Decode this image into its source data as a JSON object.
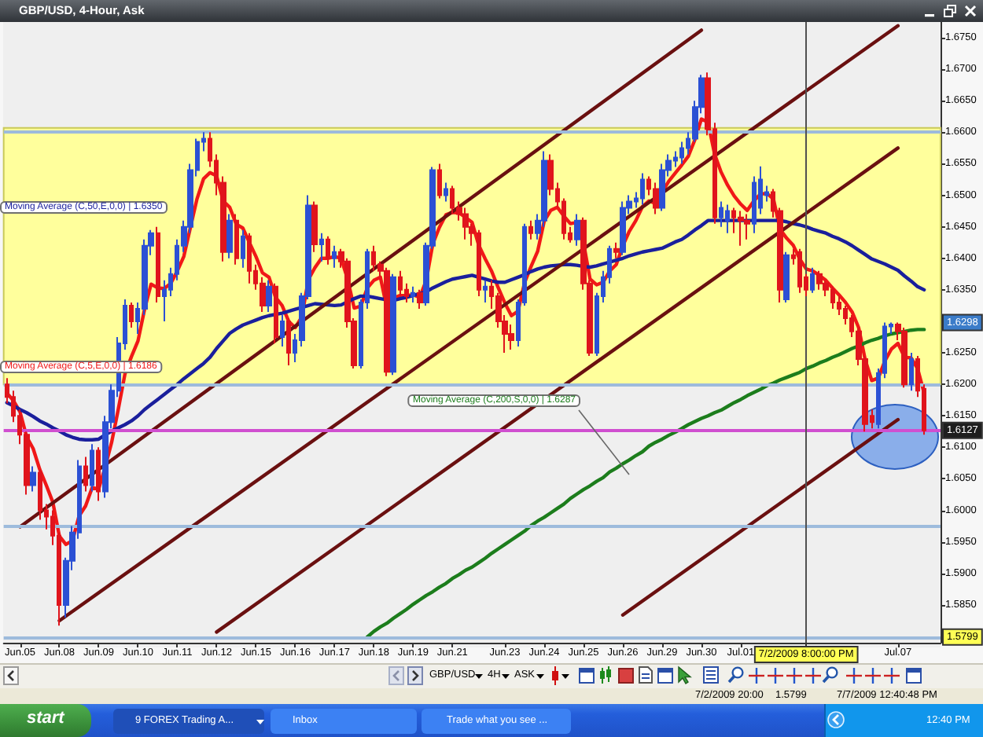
{
  "chart_data": {
    "type": "candlestick",
    "title": "GBP/USD, 4-Hour, Ask",
    "categories": [
      null,
      null,
      "Jun.05",
      null,
      null,
      null,
      null,
      null,
      "Jun.08",
      null,
      null,
      null,
      null,
      null,
      "Jun.09",
      null,
      null,
      null,
      null,
      null,
      "Jun.10",
      null,
      null,
      null,
      null,
      null,
      "Jun.11",
      null,
      null,
      null,
      null,
      null,
      "Jun.12",
      null,
      null,
      null,
      null,
      null,
      "Jun.15",
      null,
      null,
      null,
      null,
      null,
      "Jun.16",
      null,
      null,
      null,
      null,
      null,
      "Jun.17",
      null,
      null,
      null,
      null,
      null,
      "Jun.18",
      null,
      null,
      null,
      null,
      null,
      "Jun.19",
      null,
      null,
      null,
      null,
      null,
      "Jun.21",
      null,
      null,
      null,
      null,
      null,
      null,
      null,
      "Jun.23",
      null,
      null,
      null,
      null,
      null,
      "Jun.24",
      null,
      null,
      null,
      null,
      null,
      "Jun.25",
      null,
      null,
      null,
      null,
      null,
      "Jun.26",
      null,
      null,
      null,
      null,
      null,
      "Jun.29",
      null,
      null,
      null,
      null,
      null,
      "Jun.30",
      null,
      null,
      null,
      null,
      null,
      "Jul.01",
      null,
      null,
      null,
      null,
      null,
      null,
      null,
      null,
      null,
      "7/2/2009 8:00:00 PM",
      null,
      null,
      null,
      null,
      null,
      null,
      null,
      null,
      null,
      null,
      null,
      null,
      null,
      "Jul.07",
      null,
      null,
      null,
      null,
      null,
      null
    ],
    "series": [
      {
        "type": "candlestick",
        "ohlc": [
          [
            1.62,
            1.621,
            1.617,
            1.618
          ],
          [
            1.618,
            1.619,
            1.614,
            1.615
          ],
          [
            1.615,
            1.616,
            1.6105,
            1.612
          ],
          [
            1.612,
            1.6125,
            1.6025,
            1.604
          ],
          [
            1.604,
            1.607,
            1.603,
            1.606
          ],
          [
            1.606,
            1.6065,
            1.5985,
            1.6
          ],
          [
            1.6,
            1.601,
            1.597,
            1.599
          ],
          [
            1.599,
            1.6,
            1.5945,
            1.596
          ],
          [
            1.596,
            1.5965,
            1.5817,
            1.585
          ],
          [
            1.585,
            1.5925,
            1.583,
            1.592
          ],
          [
            1.592,
            1.5975,
            1.5905,
            1.5965
          ],
          [
            1.5965,
            1.608,
            1.5955,
            1.607
          ],
          [
            1.607,
            1.6085,
            1.603,
            1.604
          ],
          [
            1.604,
            1.6105,
            1.603,
            1.6095
          ],
          [
            1.6095,
            1.61,
            1.6015,
            1.603
          ],
          [
            1.603,
            1.615,
            1.602,
            1.614
          ],
          [
            1.614,
            1.62,
            1.613,
            1.619
          ],
          [
            1.619,
            1.6275,
            1.618,
            1.6265
          ],
          [
            1.6265,
            1.6335,
            1.6255,
            1.6325
          ],
          [
            1.6325,
            1.633,
            1.629,
            1.63
          ],
          [
            1.63,
            1.633,
            1.628,
            1.632
          ],
          [
            1.632,
            1.643,
            1.631,
            1.642
          ],
          [
            1.642,
            1.6445,
            1.6405,
            1.644
          ],
          [
            1.644,
            1.645,
            1.633,
            1.634
          ],
          [
            1.634,
            1.6365,
            1.63,
            1.635
          ],
          [
            1.635,
            1.6385,
            1.634,
            1.6375
          ],
          [
            1.6375,
            1.643,
            1.6365,
            1.642
          ],
          [
            1.642,
            1.646,
            1.641,
            1.645
          ],
          [
            1.645,
            1.655,
            1.644,
            1.654
          ],
          [
            1.654,
            1.659,
            1.653,
            1.6585
          ],
          [
            1.6585,
            1.66,
            1.657,
            1.659
          ],
          [
            1.659,
            1.66,
            1.6545,
            1.6555
          ],
          [
            1.6555,
            1.6565,
            1.65,
            1.652
          ],
          [
            1.652,
            1.653,
            1.6395,
            1.641
          ],
          [
            1.641,
            1.647,
            1.64,
            1.646
          ],
          [
            1.646,
            1.647,
            1.639,
            1.64
          ],
          [
            1.64,
            1.6445,
            1.6385,
            1.6435
          ],
          [
            1.6435,
            1.644,
            1.636,
            1.638
          ],
          [
            1.638,
            1.639,
            1.635,
            1.636
          ],
          [
            1.636,
            1.637,
            1.6315,
            1.6325
          ],
          [
            1.6325,
            1.6365,
            1.6315,
            1.6355
          ],
          [
            1.6355,
            1.636,
            1.6265,
            1.6275
          ],
          [
            1.6275,
            1.631,
            1.626,
            1.63
          ],
          [
            1.63,
            1.6305,
            1.623,
            1.625
          ],
          [
            1.625,
            1.628,
            1.6235,
            1.627
          ],
          [
            1.627,
            1.6345,
            1.626,
            1.634
          ],
          [
            1.634,
            1.65,
            1.6335,
            1.6484
          ],
          [
            1.6484,
            1.649,
            1.641,
            1.6422
          ],
          [
            1.6422,
            1.644,
            1.6395,
            1.643
          ],
          [
            1.643,
            1.6435,
            1.639,
            1.64
          ],
          [
            1.64,
            1.642,
            1.6385,
            1.641
          ],
          [
            1.641,
            1.6415,
            1.6385,
            1.6395
          ],
          [
            1.6395,
            1.64,
            1.629,
            1.63
          ],
          [
            1.63,
            1.6305,
            1.6225,
            1.623
          ],
          [
            1.623,
            1.6335,
            1.6225,
            1.633
          ],
          [
            1.633,
            1.6415,
            1.632,
            1.641
          ],
          [
            1.641,
            1.642,
            1.638,
            1.639
          ],
          [
            1.639,
            1.6395,
            1.637,
            1.638
          ],
          [
            1.638,
            1.6385,
            1.6213,
            1.622
          ],
          [
            1.622,
            1.6375,
            1.6215,
            1.637
          ],
          [
            1.637,
            1.638,
            1.634,
            1.635
          ],
          [
            1.635,
            1.636,
            1.633,
            1.634
          ],
          [
            1.634,
            1.6355,
            1.633,
            1.6345
          ],
          [
            1.6345,
            1.635,
            1.632,
            1.633
          ],
          [
            1.633,
            1.6425,
            1.6325,
            1.642
          ],
          [
            1.642,
            1.6545,
            1.6415,
            1.654
          ],
          [
            1.654,
            1.655,
            1.6495,
            1.65
          ],
          [
            1.65,
            1.652,
            1.649,
            1.651
          ],
          [
            1.651,
            1.6515,
            1.647,
            1.648
          ],
          [
            1.648,
            1.649,
            1.646,
            1.647
          ],
          [
            1.647,
            1.648,
            1.643,
            1.645
          ],
          [
            1.645,
            1.6455,
            1.642,
            1.644
          ],
          [
            1.644,
            1.6445,
            1.634,
            1.635
          ],
          [
            1.635,
            1.6365,
            1.633,
            1.6355
          ],
          [
            1.6355,
            1.6365,
            1.632,
            1.634
          ],
          [
            1.634,
            1.6345,
            1.629,
            1.63
          ],
          [
            1.63,
            1.631,
            1.625,
            1.628
          ],
          [
            1.628,
            1.6295,
            1.6255,
            1.627
          ],
          [
            1.627,
            1.6335,
            1.626,
            1.633
          ],
          [
            1.633,
            1.6455,
            1.6325,
            1.645
          ],
          [
            1.645,
            1.646,
            1.643,
            1.644
          ],
          [
            1.644,
            1.647,
            1.643,
            1.646
          ],
          [
            1.646,
            1.657,
            1.645,
            1.6555
          ],
          [
            1.6555,
            1.6565,
            1.65,
            1.651
          ],
          [
            1.651,
            1.652,
            1.648,
            1.649
          ],
          [
            1.649,
            1.6495,
            1.643,
            1.644
          ],
          [
            1.644,
            1.645,
            1.6425,
            1.643
          ],
          [
            1.643,
            1.647,
            1.642,
            1.646
          ],
          [
            1.646,
            1.6465,
            1.635,
            1.636
          ],
          [
            1.636,
            1.6365,
            1.6245,
            1.625
          ],
          [
            1.625,
            1.6345,
            1.6245,
            1.634
          ],
          [
            1.634,
            1.638,
            1.633,
            1.637
          ],
          [
            1.637,
            1.642,
            1.636,
            1.6415
          ],
          [
            1.6415,
            1.6425,
            1.64,
            1.641
          ],
          [
            1.641,
            1.649,
            1.6405,
            1.648
          ],
          [
            1.648,
            1.65,
            1.647,
            1.649
          ],
          [
            1.649,
            1.6505,
            1.648,
            1.6495
          ],
          [
            1.6495,
            1.6535,
            1.6485,
            1.6525
          ],
          [
            1.6525,
            1.653,
            1.65,
            1.651
          ],
          [
            1.651,
            1.652,
            1.647,
            1.648
          ],
          [
            1.648,
            1.655,
            1.6475,
            1.654
          ],
          [
            1.654,
            1.6565,
            1.653,
            1.6555
          ],
          [
            1.6555,
            1.657,
            1.6545,
            1.656
          ],
          [
            1.656,
            1.6585,
            1.655,
            1.6575
          ],
          [
            1.6575,
            1.66,
            1.6565,
            1.659
          ],
          [
            1.659,
            1.665,
            1.6585,
            1.664
          ],
          [
            1.664,
            1.6691,
            1.663,
            1.6686
          ],
          [
            1.6686,
            1.6695,
            1.6595,
            1.6605
          ],
          [
            1.6605,
            1.6615,
            1.6455,
            1.6465
          ],
          [
            1.6465,
            1.649,
            1.645,
            1.648
          ],
          [
            1.646,
            1.6485,
            1.644,
            1.6475
          ],
          [
            1.6475,
            1.648,
            1.644,
            1.6465
          ],
          [
            1.6465,
            1.6475,
            1.642,
            1.646
          ],
          [
            1.646,
            1.647,
            1.643,
            1.6455
          ],
          [
            1.6455,
            1.653,
            1.644,
            1.652
          ],
          [
            1.648,
            1.6546,
            1.647,
            1.6525
          ],
          [
            1.65,
            1.6515,
            1.649,
            1.6505
          ],
          [
            1.6505,
            1.651,
            1.6465,
            1.6475
          ],
          [
            1.6475,
            1.648,
            1.633,
            1.635
          ],
          [
            1.6335,
            1.641,
            1.633,
            1.6405
          ],
          [
            1.6405,
            1.6415,
            1.639,
            1.64
          ],
          [
            1.641,
            1.6415,
            1.6345,
            1.6355
          ],
          [
            1.637,
            1.6375,
            1.634,
            1.635
          ],
          [
            1.635,
            1.6385,
            1.6345,
            1.6375
          ],
          [
            1.6375,
            1.638,
            1.635,
            1.636
          ],
          [
            1.636,
            1.6365,
            1.634,
            1.635
          ],
          [
            1.635,
            1.6355,
            1.632,
            1.633
          ],
          [
            1.633,
            1.634,
            1.631,
            1.632
          ],
          [
            1.632,
            1.6325,
            1.6295,
            1.6305
          ],
          [
            1.6305,
            1.631,
            1.6275,
            1.6284
          ],
          [
            1.6284,
            1.629,
            1.623,
            1.624
          ],
          [
            1.624,
            1.6245,
            1.6125,
            1.6137
          ],
          [
            1.615,
            1.616,
            1.613,
            1.614
          ],
          [
            1.6137,
            1.6225,
            1.613,
            1.6218
          ],
          [
            1.6218,
            1.6298,
            1.621,
            1.6292
          ],
          [
            1.6292,
            1.6298,
            1.628,
            1.6295
          ],
          [
            1.6295,
            1.6298,
            1.627,
            1.6284
          ],
          [
            1.6284,
            1.629,
            1.6195,
            1.62
          ],
          [
            1.62,
            1.625,
            1.619,
            1.624
          ],
          [
            1.624,
            1.6245,
            1.618,
            1.619
          ],
          [
            1.6193,
            1.62,
            1.612,
            1.6127
          ],
          null,
          null
        ],
        "colors": [
          "#e0141c",
          "#e0141c",
          "#e0141c",
          "#e0141c",
          "#2b50d4",
          "#e0141c",
          "#e0141c",
          "#e0141c",
          "#e0141c",
          "#2b50d4",
          "#2b50d4",
          "#2b50d4",
          "#e0141c",
          "#2b50d4",
          "#e0141c",
          "#2b50d4",
          "#2b50d4",
          "#2b50d4",
          "#2b50d4",
          "#e0141c",
          "#2b50d4",
          "#2b50d4",
          "#2b50d4",
          "#e0141c",
          "#2b50d4",
          "#2b50d4",
          "#2b50d4",
          "#2b50d4",
          "#2b50d4",
          "#2b50d4",
          "#2b50d4",
          "#e0141c",
          "#e0141c",
          "#e0141c",
          "#2b50d4",
          "#e0141c",
          "#2b50d4",
          "#e0141c",
          "#e0141c",
          "#e0141c",
          "#2b50d4",
          "#e0141c",
          "#2b50d4",
          "#e0141c",
          "#2b50d4",
          "#2b50d4",
          "#2b50d4",
          "#e0141c",
          "#2b50d4",
          "#e0141c",
          "#2b50d4",
          "#e0141c",
          "#e0141c",
          "#e0141c",
          "#2b50d4",
          "#2b50d4",
          "#e0141c",
          "#e0141c",
          "#e0141c",
          "#2b50d4",
          "#e0141c",
          "#e0141c",
          "#2b50d4",
          "#e0141c",
          "#2b50d4",
          "#2b50d4",
          "#e0141c",
          "#2b50d4",
          "#e0141c",
          "#e0141c",
          "#e0141c",
          "#e0141c",
          "#e0141c",
          "#2b50d4",
          "#e0141c",
          "#e0141c",
          "#e0141c",
          "#e0141c",
          "#2b50d4",
          "#2b50d4",
          "#e0141c",
          "#2b50d4",
          "#2b50d4",
          "#e0141c",
          "#e0141c",
          "#e0141c",
          "#e0141c",
          "#2b50d4",
          "#e0141c",
          "#e0141c",
          "#2b50d4",
          "#2b50d4",
          "#2b50d4",
          "#e0141c",
          "#2b50d4",
          "#2b50d4",
          "#2b50d4",
          "#2b50d4",
          "#e0141c",
          "#e0141c",
          "#2b50d4",
          "#2b50d4",
          "#2b50d4",
          "#2b50d4",
          "#2b50d4",
          "#2b50d4",
          "#2b50d4",
          "#e0141c",
          "#e0141c",
          "#2b50d4",
          "#2b50d4",
          "#e0141c",
          "#e0141c",
          "#e0141c",
          "#2b50d4",
          "#2b50d4",
          "#2b50d4",
          "#e0141c",
          "#e0141c",
          "#2b50d4",
          "#e0141c",
          "#e0141c",
          "#e0141c",
          "#2b50d4",
          "#e0141c",
          "#e0141c",
          "#e0141c",
          "#e0141c",
          "#e0141c",
          "#e0141c",
          "#e0141c",
          "#e0141c",
          "#e0141c",
          "#2b50d4",
          "#2b50d4",
          "#2b50d4",
          "#e0141c",
          "#e0141c",
          "#2b50d4",
          "#e0141c",
          "#e0141c",
          null,
          null
        ]
      },
      {
        "type": "line",
        "name": "Moving Average (C,5,E,0,0) | 1.6186",
        "color": "#f01818",
        "values": [
          1.6186,
          1.6174,
          1.6156,
          1.6117,
          1.6098,
          1.6065,
          1.604,
          1.6013,
          1.5959,
          1.5946,
          1.5952,
          1.5991,
          1.6007,
          1.6036,
          1.6034,
          1.6069,
          1.6109,
          1.6161,
          1.6216,
          1.6244,
          1.6269,
          1.6319,
          1.6359,
          1.6353,
          1.6352,
          1.636,
          1.638,
          1.6403,
          1.6449,
          1.6494,
          1.6526,
          1.6536,
          1.6531,
          1.6491,
          1.6481,
          1.6454,
          1.6448,
          1.6425,
          1.6403,
          1.6377,
          1.637,
          1.6338,
          1.6325,
          1.63,
          1.629,
          1.6307,
          1.6366,
          1.6385,
          1.64,
          1.64,
          1.6403,
          1.64,
          1.6367,
          1.6321,
          1.6324,
          1.6353,
          1.6365,
          1.637,
          1.632,
          1.6337,
          1.6341,
          1.6341,
          1.6342,
          1.6338,
          1.6365,
          1.6423,
          1.6449,
          1.6469,
          1.6473,
          1.6472,
          1.6465,
          1.6457,
          1.6421,
          1.6399,
          1.6379,
          1.6353,
          1.6329,
          1.6309,
          1.6316,
          1.6361,
          1.6387,
          1.6411,
          1.6459,
          1.6476,
          1.6481,
          1.6467,
          1.6455,
          1.6457,
          1.6425,
          1.6367,
          1.6358,
          1.6362,
          1.638,
          1.639,
          1.642,
          1.6443,
          1.646,
          1.6482,
          1.6491,
          1.6487,
          1.6505,
          1.6522,
          1.6535,
          1.6548,
          1.6562,
          1.6588,
          1.6621,
          1.6616,
          1.6566,
          1.6537,
          1.6516,
          1.6499,
          1.6486,
          1.6476,
          1.6491,
          1.6502,
          1.6503,
          1.6494,
          1.6446,
          1.6432,
          1.6421,
          1.6399,
          1.6383,
          1.638,
          1.6373,
          1.6365,
          1.6353,
          1.6342,
          1.633,
          1.6315,
          1.629,
          1.6239,
          1.6206,
          1.621,
          1.6237,
          1.6256,
          1.6265,
          1.6243,
          1.6242,
          1.6225,
          1.6186,
          null,
          null
        ]
      },
      {
        "type": "line",
        "name": "Moving Average (C,50,E,0,0) | 1.6350",
        "color": "#1a1f9c",
        "values": [
          1.6171,
          1.6166,
          1.616,
          1.6155,
          1.6149,
          1.6142,
          1.6137,
          1.6131,
          1.6126,
          1.612,
          1.6116,
          1.6113,
          1.6112,
          1.6112,
          1.6113,
          1.612,
          1.6126,
          1.6131,
          1.6136,
          1.6142,
          1.615,
          1.616,
          1.6168,
          1.6176,
          1.6184,
          1.6192,
          1.62,
          1.6209,
          1.6217,
          1.6225,
          1.6233,
          1.6243,
          1.6257,
          1.6269,
          1.6281,
          1.6288,
          1.6294,
          1.6298,
          1.6302,
          1.6306,
          1.6309,
          1.6311,
          1.6313,
          1.6316,
          1.6319,
          1.6322,
          1.6325,
          1.6328,
          1.6327,
          1.6326,
          1.6325,
          1.6326,
          1.6331,
          1.6336,
          1.634,
          1.634,
          1.6338,
          1.6336,
          1.6334,
          1.6333,
          1.6336,
          1.6338,
          1.6341,
          1.6344,
          1.6347,
          1.6353,
          1.6358,
          1.6363,
          1.6367,
          1.6369,
          1.6371,
          1.6373,
          1.637,
          1.6367,
          1.6364,
          1.6362,
          1.6362,
          1.6366,
          1.637,
          1.6374,
          1.6379,
          1.6383,
          1.6386,
          1.6388,
          1.6389,
          1.639,
          1.639,
          1.6389,
          1.6387,
          1.6386,
          1.6388,
          1.6391,
          1.6394,
          1.6397,
          1.64,
          1.6404,
          1.6407,
          1.641,
          1.6412,
          1.6414,
          1.6416,
          1.6421,
          1.6426,
          1.643,
          1.6437,
          1.6445,
          1.6452,
          1.646,
          1.646,
          1.646,
          1.646,
          1.646,
          1.646,
          1.646,
          1.646,
          1.646,
          1.646,
          1.646,
          1.646,
          1.6458,
          1.6455,
          1.6453,
          1.645,
          1.6446,
          1.6443,
          1.644,
          1.6435,
          1.6431,
          1.6426,
          1.642,
          1.6413,
          1.6406,
          1.6399,
          1.6395,
          1.6391,
          1.6386,
          1.6381,
          1.6372,
          1.6364,
          1.6355,
          1.635,
          null,
          null
        ]
      },
      {
        "type": "line",
        "name": "Moving Average (C,200,S,0,0) | 1.6287",
        "color": "#1c7d1c",
        "values": [
          null,
          null,
          null,
          null,
          null,
          null,
          null,
          null,
          null,
          null,
          null,
          null,
          null,
          null,
          null,
          null,
          null,
          null,
          null,
          null,
          null,
          null,
          null,
          null,
          null,
          null,
          null,
          null,
          null,
          null,
          null,
          null,
          null,
          null,
          null,
          null,
          null,
          null,
          null,
          null,
          null,
          null,
          null,
          null,
          null,
          null,
          null,
          null,
          null,
          null,
          null,
          null,
          null,
          null,
          null,
          1.5799,
          1.5808,
          1.5815,
          1.5821,
          1.5829,
          1.5836,
          1.5843,
          1.5851,
          1.5858,
          1.5865,
          1.5871,
          1.5878,
          1.5884,
          1.5892,
          1.5898,
          1.5905,
          1.591,
          1.5917,
          1.5924,
          1.5932,
          1.5939,
          1.5946,
          1.5953,
          1.596,
          1.5967,
          1.5976,
          1.5983,
          1.5989,
          1.5996,
          1.6003,
          1.601,
          1.6019,
          1.6026,
          1.6033,
          1.6039,
          1.6046,
          1.6052,
          1.6061,
          1.6067,
          1.6074,
          1.608,
          1.6087,
          1.6093,
          1.6102,
          1.6108,
          1.6113,
          1.6119,
          1.6124,
          1.613,
          1.6136,
          1.6141,
          1.6146,
          1.615,
          1.6155,
          1.6159,
          1.6165,
          1.6171,
          1.6176,
          1.6182,
          1.6187,
          1.6192,
          1.6198,
          1.6202,
          1.6207,
          1.6211,
          1.6215,
          1.6219,
          1.6225,
          1.6229,
          1.6234,
          1.6238,
          1.6243,
          1.6247,
          1.6252,
          1.6257,
          1.6261,
          1.6266,
          1.627,
          1.6273,
          1.6277,
          1.628,
          1.6282,
          1.6284,
          1.6286,
          1.6287,
          1.6287,
          null,
          null
        ]
      },
      {
        "type": "line",
        "color": "#6a1010",
        "x": [
          "Jun.05",
          "Jun.30"
        ],
        "values": [
          1.5974,
          1.6762
        ]
      },
      {
        "type": "line",
        "color": "#6a1010",
        "x": [
          "Jun.08",
          "Jul.07"
        ],
        "values": [
          1.5825,
          1.6769
        ]
      },
      {
        "type": "line",
        "color": "#6a1010",
        "x": [
          "Jun.12",
          "Jul.07"
        ],
        "values": [
          1.5807,
          1.6575
        ]
      },
      {
        "type": "line",
        "color": "#6a1010",
        "x": [
          "Jun.26",
          "Jul.07"
        ],
        "values": [
          1.5834,
          1.6144
        ]
      }
    ],
    "ylim": [
      1.579,
      1.6775
    ],
    "yticks": [
      {
        "value": 1.585,
        "label": "1.5850"
      },
      {
        "value": 1.59,
        "label": "1.5900"
      },
      {
        "value": 1.595,
        "label": "1.5950"
      },
      {
        "value": 1.6,
        "label": "1.6000"
      },
      {
        "value": 1.605,
        "label": "1.6050"
      },
      {
        "value": 1.61,
        "label": "1.6100"
      },
      {
        "value": 1.615,
        "label": "1.6150"
      },
      {
        "value": 1.62,
        "label": "1.6200"
      },
      {
        "value": 1.625,
        "label": "1.6250"
      },
      {
        "value": 1.635,
        "label": "1.6350"
      },
      {
        "value": 1.64,
        "label": "1.6400"
      },
      {
        "value": 1.645,
        "label": "1.6450"
      },
      {
        "value": 1.65,
        "label": "1.6500"
      },
      {
        "value": 1.655,
        "label": "1.6550"
      },
      {
        "value": 1.66,
        "label": "1.6600"
      },
      {
        "value": 1.665,
        "label": "1.6650"
      },
      {
        "value": 1.67,
        "label": "1.6700"
      },
      {
        "value": 1.675,
        "label": "1.6750"
      }
    ],
    "ref_lines": [
      {
        "axis": "y",
        "value": 1.66,
        "color": "#9dbbdc"
      },
      {
        "axis": "y",
        "value": 1.62,
        "color": "#9dbbdc"
      },
      {
        "axis": "y",
        "value": 1.5975,
        "color": "#9dbbdc"
      },
      {
        "axis": "y",
        "value": 1.6127,
        "label": "1.6127",
        "color": "#d04fd0"
      },
      {
        "axis": "y",
        "value": 1.5799,
        "label": "1.5799",
        "color": "#9dbbdc"
      },
      {
        "axis": "x",
        "value": "7/2/2009 8:00:00 PM",
        "color": "#505050"
      }
    ],
    "bands": [
      {
        "axis": "y",
        "from": 1.62,
        "to": 1.6607,
        "color": "#ffff9c"
      }
    ],
    "marker": "none",
    "line_style": "solid",
    "annotations": [
      "GBP/USD",
      "4H",
      "ASK",
      "7/2/2009 20:00",
      "1.5799",
      "7/7/2009 12:40:48 PM",
      "start",
      "9 FOREX Trading A...",
      "Inbox",
      "Trade what you see ...",
      "12:40 PM",
      {
        "text": "1.6298",
        "y": 1.6298
      }
    ]
  }
}
